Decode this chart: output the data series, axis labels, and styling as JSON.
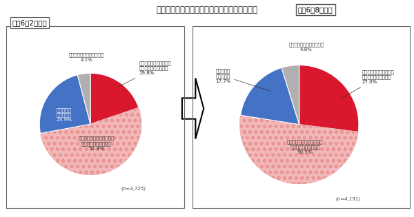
{
  "title": "図１「送料無料」表示見直しの議論の認知状況",
  "chart1_label": "令和6年2月調査",
  "chart2_label": "令和6年8月調査",
  "n1": "(n=3,725)",
  "n2": "(n=4,191)",
  "slices1": [
    19.8,
    52.4,
    23.9,
    4.1
  ],
  "slices2": [
    27.0,
    50.5,
    17.7,
    4.8
  ],
  "colors": [
    "#d9182e",
    "#f2b8b8",
    "#4472c4",
    "#b0b0b0"
  ],
  "label0_1": "見聞きしたことがあり、\n内容もよく知っている\n19.8%",
  "label1_1": "見聞きしたことはあるが、\n詳しい内容は知らない\n52.4%",
  "label2_1": "見聞きした\nことはない\n23.9%",
  "label3_1": "分からない・覚えていない\n4.1%",
  "label0_2": "見聞きしたことがあり、\n内容もよく知っている\n27.0%",
  "label1_2": "見聞きしたことはあるが、\n詳しい内容は知らない\n50.5%",
  "label2_2": "見聞きした\nことはない\n17.7%",
  "label3_2": "分からない・覚えていない\n4.8%"
}
